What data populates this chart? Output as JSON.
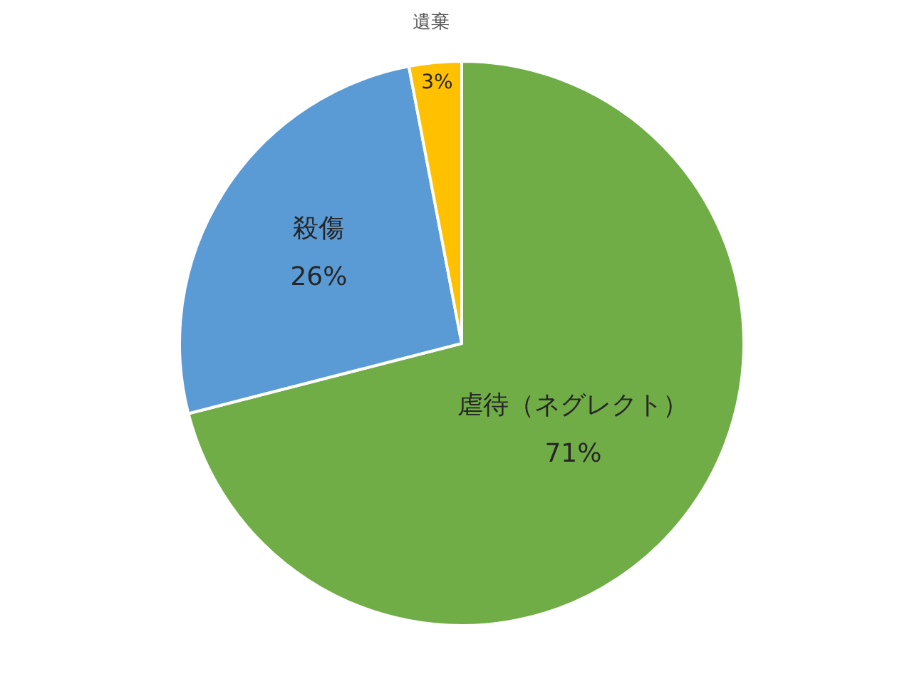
{
  "chart_data": {
    "type": "pie",
    "categories": [
      "虐待（ネグレクト）",
      "殺傷",
      "遺棄"
    ],
    "values": [
      71,
      26,
      3
    ],
    "colors": [
      "#70ad47",
      "#5b9bd5",
      "#ffc000"
    ],
    "value_labels": [
      "71%",
      "26%",
      "3%"
    ]
  }
}
